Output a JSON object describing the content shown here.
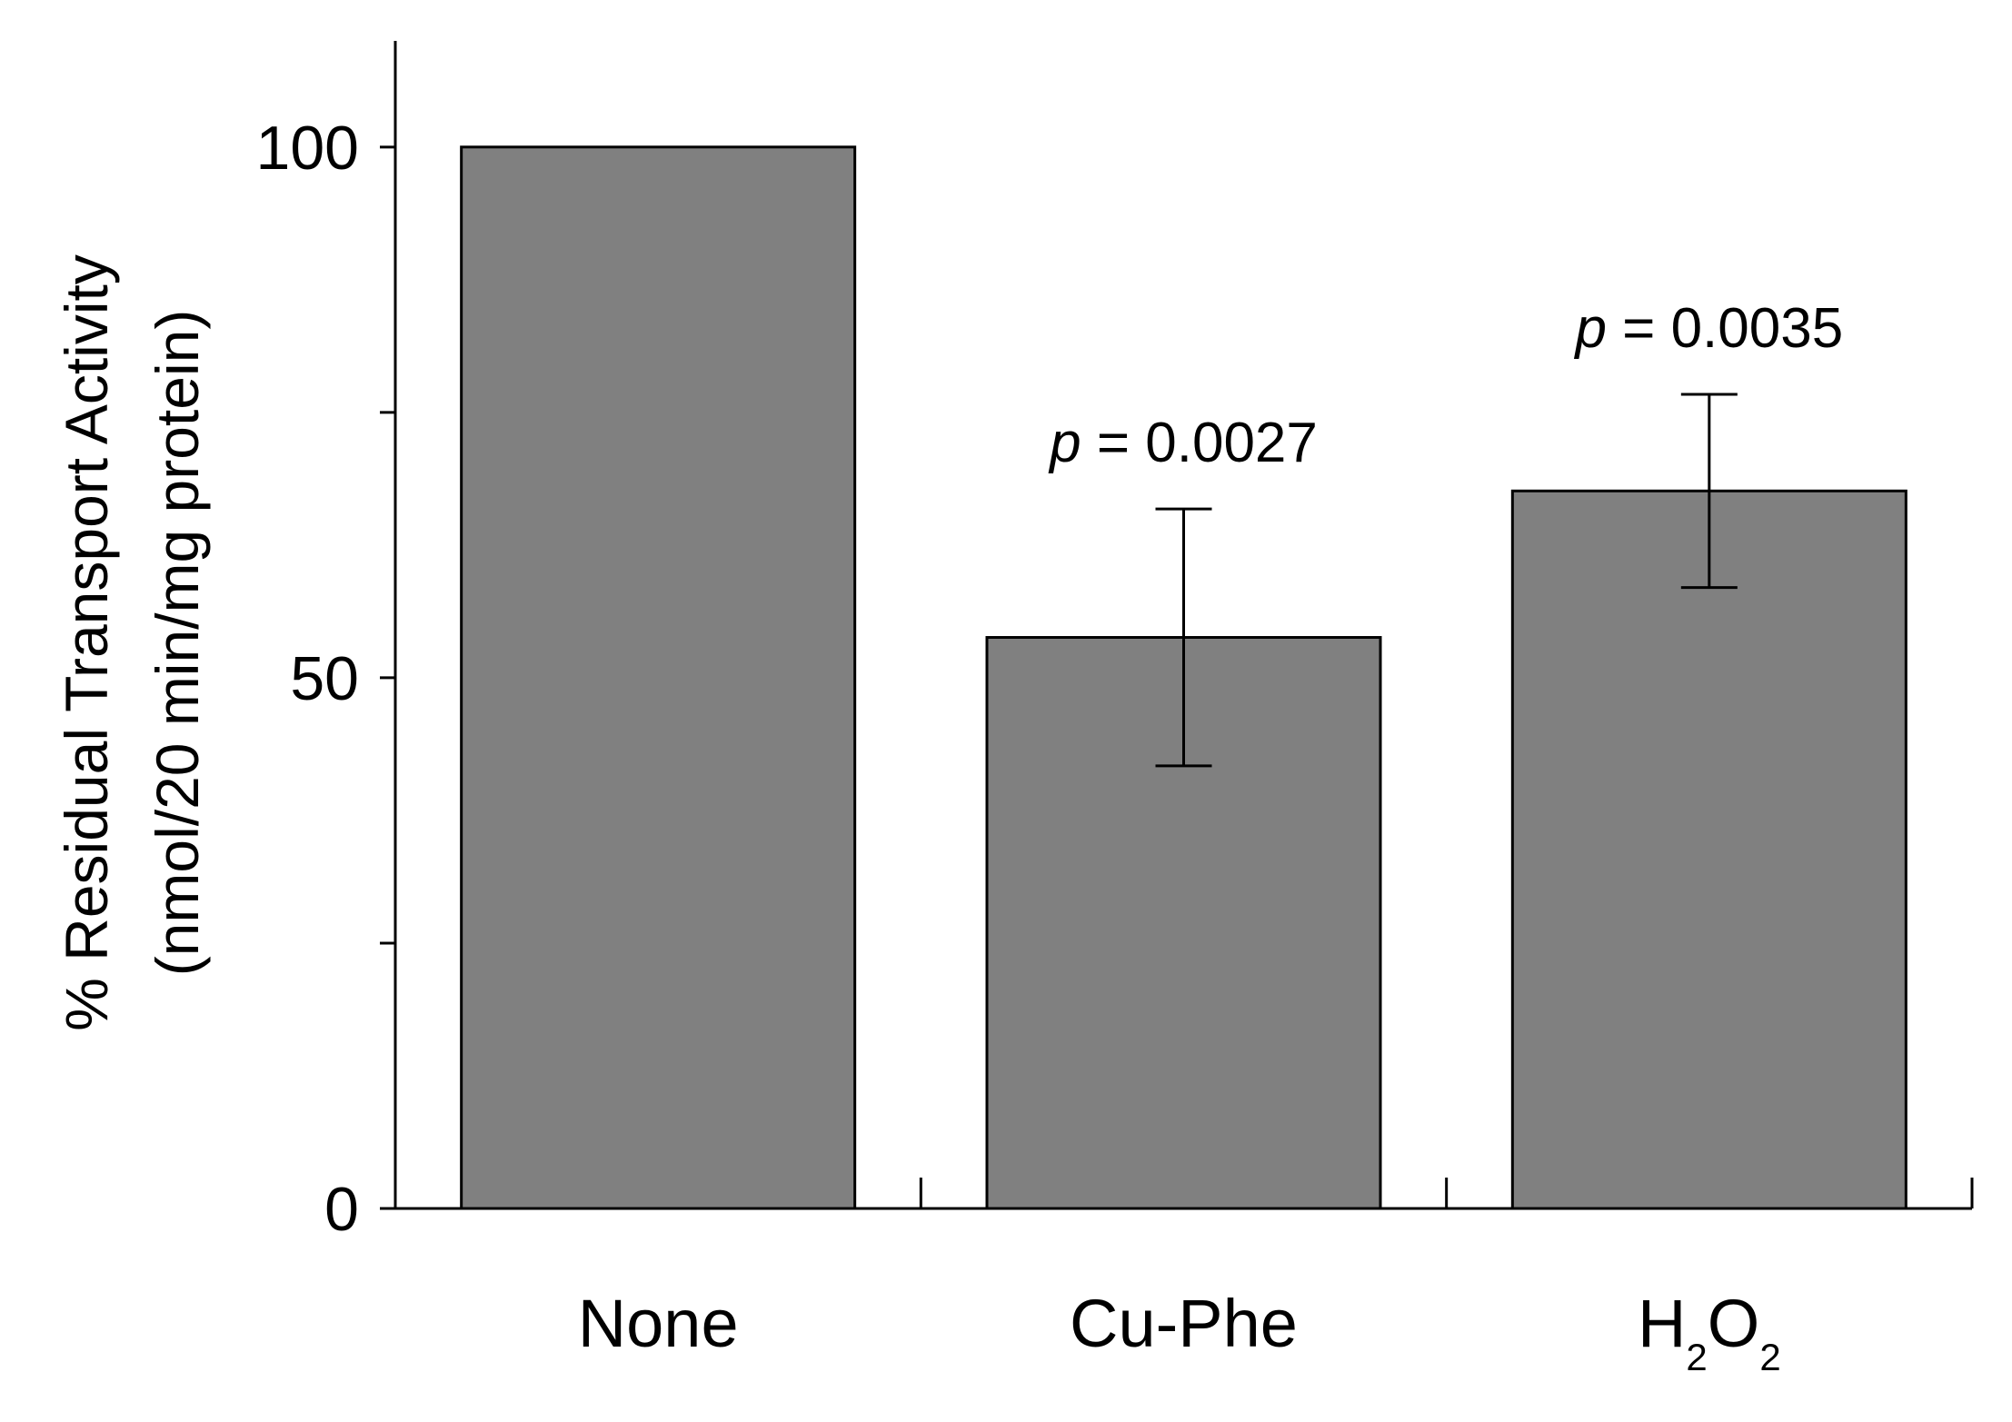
{
  "chart_data": {
    "type": "bar",
    "categories": [
      "None",
      "Cu-Phe",
      "H2O2"
    ],
    "category_display": [
      {
        "base": "None",
        "sub1": "",
        "mid": "",
        "sub2": ""
      },
      {
        "base": "Cu-Phe",
        "sub1": "",
        "mid": "",
        "sub2": ""
      },
      {
        "base": "H",
        "sub1": "2",
        "mid": "O",
        "sub2": "2"
      }
    ],
    "values": [
      100,
      53.8,
      67.6
    ],
    "errors": [
      null,
      12.1,
      9.1
    ],
    "annotations": [
      null,
      {
        "p": "p",
        "rest": " = 0.0027"
      },
      {
        "p": "p",
        "rest": " = 0.0035"
      }
    ],
    "ylabel_line1": "% Residual Transport Activity",
    "ylabel_line2": "(nmol/20 min/mg protein)",
    "xlabel": "",
    "title": "",
    "ylim": [
      0,
      110
    ],
    "yticks_major": [
      0,
      50,
      100
    ],
    "yticks_minor": [
      25,
      75
    ],
    "grid": false,
    "legend": "none",
    "bar_color": "#808080",
    "axis_color": "#000000"
  }
}
